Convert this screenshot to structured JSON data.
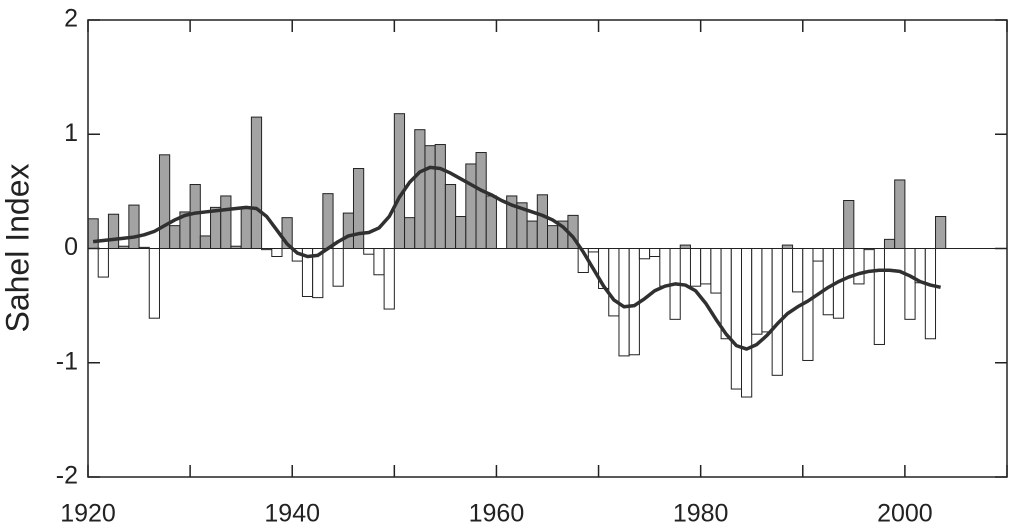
{
  "chart_data": {
    "type": "bar",
    "y_label": "Sahel Index",
    "x": [
      1920,
      1921,
      1922,
      1923,
      1924,
      1925,
      1926,
      1927,
      1928,
      1929,
      1930,
      1931,
      1932,
      1933,
      1934,
      1935,
      1936,
      1937,
      1938,
      1939,
      1940,
      1941,
      1942,
      1943,
      1944,
      1945,
      1946,
      1947,
      1948,
      1949,
      1950,
      1951,
      1952,
      1953,
      1954,
      1955,
      1956,
      1957,
      1958,
      1959,
      1960,
      1961,
      1962,
      1963,
      1964,
      1965,
      1966,
      1967,
      1968,
      1969,
      1970,
      1971,
      1972,
      1973,
      1974,
      1975,
      1976,
      1977,
      1978,
      1979,
      1980,
      1981,
      1982,
      1983,
      1984,
      1985,
      1986,
      1987,
      1988,
      1989,
      1990,
      1991,
      1992,
      1993,
      1994,
      1995,
      1996,
      1997,
      1998,
      1999,
      2000,
      2001,
      2002,
      2003
    ],
    "series": [
      {
        "type": "bar",
        "color": "#a3a3a3",
        "negative_color": "#ffffff",
        "values": [
          0.26,
          -0.25,
          0.3,
          0.02,
          0.38,
          0.01,
          -0.61,
          0.82,
          0.2,
          0.32,
          0.56,
          0.11,
          0.36,
          0.46,
          0.02,
          0.35,
          1.15,
          -0.01,
          -0.07,
          0.27,
          -0.11,
          -0.42,
          -0.43,
          0.48,
          -0.33,
          0.31,
          0.7,
          -0.05,
          -0.23,
          -0.53,
          1.18,
          0.27,
          1.04,
          0.9,
          0.91,
          0.56,
          0.28,
          0.74,
          0.84,
          0.46,
          0.0,
          0.46,
          0.4,
          0.24,
          0.47,
          0.2,
          0.24,
          0.29,
          -0.21,
          -0.03,
          -0.35,
          -0.59,
          -0.94,
          -0.93,
          -0.09,
          -0.07,
          -0.33,
          -0.62,
          0.03,
          -0.33,
          -0.31,
          -0.39,
          -0.79,
          -1.23,
          -1.3,
          -0.75,
          -0.73,
          -1.11,
          0.03,
          -0.38,
          -0.98,
          -0.11,
          -0.58,
          -0.61,
          0.42,
          -0.31,
          -0.01,
          -0.84,
          0.08,
          0.6,
          -0.62,
          -0.3,
          -0.79,
          0.28
        ]
      },
      {
        "type": "line",
        "color": "#303030",
        "values": [
          0.06,
          0.07,
          0.08,
          0.09,
          0.1,
          0.12,
          0.15,
          0.2,
          0.25,
          0.29,
          0.31,
          0.32,
          0.33,
          0.34,
          0.35,
          0.36,
          0.35,
          0.28,
          0.16,
          0.04,
          -0.04,
          -0.07,
          -0.06,
          0.0,
          0.06,
          0.11,
          0.13,
          0.14,
          0.18,
          0.28,
          0.45,
          0.58,
          0.67,
          0.71,
          0.7,
          0.66,
          0.61,
          0.56,
          0.51,
          0.47,
          0.42,
          0.38,
          0.35,
          0.32,
          0.29,
          0.25,
          0.19,
          0.1,
          -0.03,
          -0.18,
          -0.33,
          -0.45,
          -0.51,
          -0.5,
          -0.44,
          -0.37,
          -0.33,
          -0.31,
          -0.32,
          -0.37,
          -0.48,
          -0.62,
          -0.75,
          -0.85,
          -0.88,
          -0.84,
          -0.76,
          -0.66,
          -0.57,
          -0.51,
          -0.46,
          -0.4,
          -0.34,
          -0.29,
          -0.25,
          -0.22,
          -0.2,
          -0.19,
          -0.19,
          -0.2,
          -0.24,
          -0.29,
          -0.32,
          -0.34
        ]
      }
    ],
    "xlim": [
      1920,
      2010
    ],
    "xticks": [
      1920,
      1940,
      1960,
      1980,
      2000
    ],
    "xminorticks": [
      1930,
      1950,
      1970,
      1990,
      2010
    ],
    "ylim": [
      -2,
      2
    ],
    "yticks": [
      -2,
      -1,
      0,
      1,
      2
    ]
  }
}
